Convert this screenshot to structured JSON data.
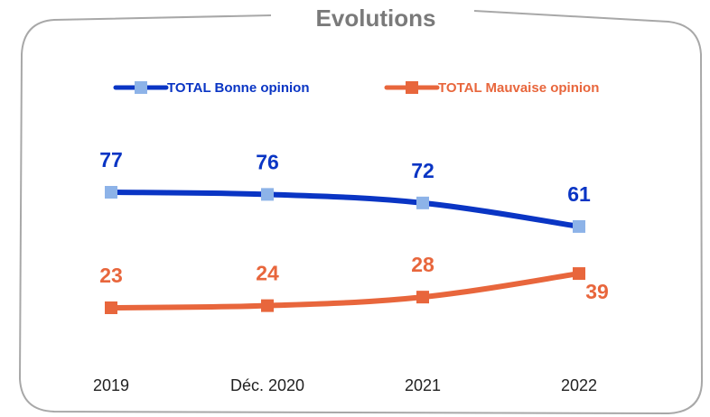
{
  "chart_data": {
    "type": "line",
    "title": "Evolutions",
    "categories": [
      "2019",
      "Déc. 2020",
      "2021",
      "2022"
    ],
    "series": [
      {
        "name": "TOTAL Bonne opinion",
        "color": "#0a35c4",
        "marker_color": "#8db3e8",
        "values": [
          77,
          76,
          72,
          61
        ]
      },
      {
        "name": "TOTAL Mauvaise opinion",
        "color": "#e8663c",
        "marker_color": "#e8663c",
        "values": [
          23,
          24,
          28,
          39
        ]
      }
    ]
  }
}
